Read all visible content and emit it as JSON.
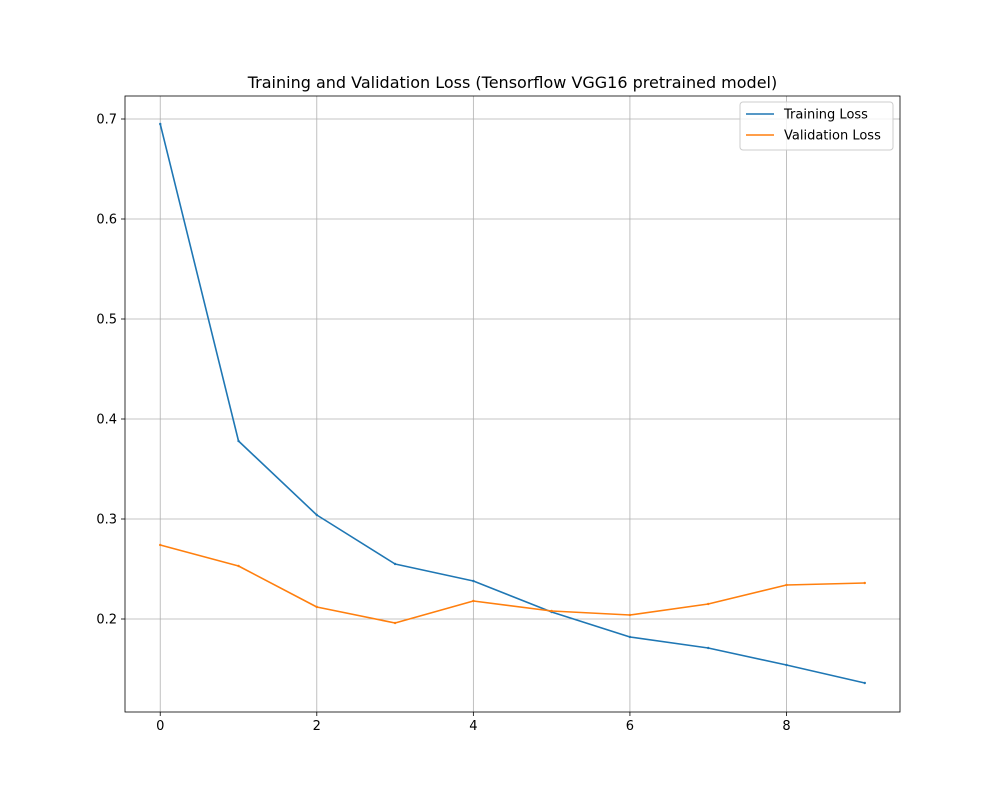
{
  "chart_data": {
    "type": "line",
    "title": "Training and Validation Loss (Tensorflow VGG16 pretrained model)",
    "xlabel": "",
    "ylabel": "",
    "x": [
      0,
      1,
      2,
      3,
      4,
      5,
      6,
      7,
      8,
      9
    ],
    "xlim": [
      -0.45,
      9.45
    ],
    "ylim": [
      0.107,
      0.723
    ],
    "x_ticks": [
      0,
      2,
      4,
      6,
      8
    ],
    "x_tick_labels": [
      "0",
      "2",
      "4",
      "6",
      "8"
    ],
    "y_ticks": [
      0.2,
      0.3,
      0.4,
      0.5,
      0.6,
      0.7
    ],
    "y_tick_labels": [
      "0.2",
      "0.3",
      "0.4",
      "0.5",
      "0.6",
      "0.7"
    ],
    "grid": true,
    "legend_position": "top-right",
    "series": [
      {
        "name": "Training Loss",
        "color": "#1f77b4",
        "values": [
          0.695,
          0.378,
          0.304,
          0.255,
          0.238,
          0.207,
          0.182,
          0.171,
          0.154,
          0.136
        ]
      },
      {
        "name": "Validation Loss",
        "color": "#ff7f0e",
        "values": [
          0.274,
          0.253,
          0.212,
          0.196,
          0.218,
          0.208,
          0.204,
          0.215,
          0.234,
          0.236
        ]
      }
    ]
  }
}
